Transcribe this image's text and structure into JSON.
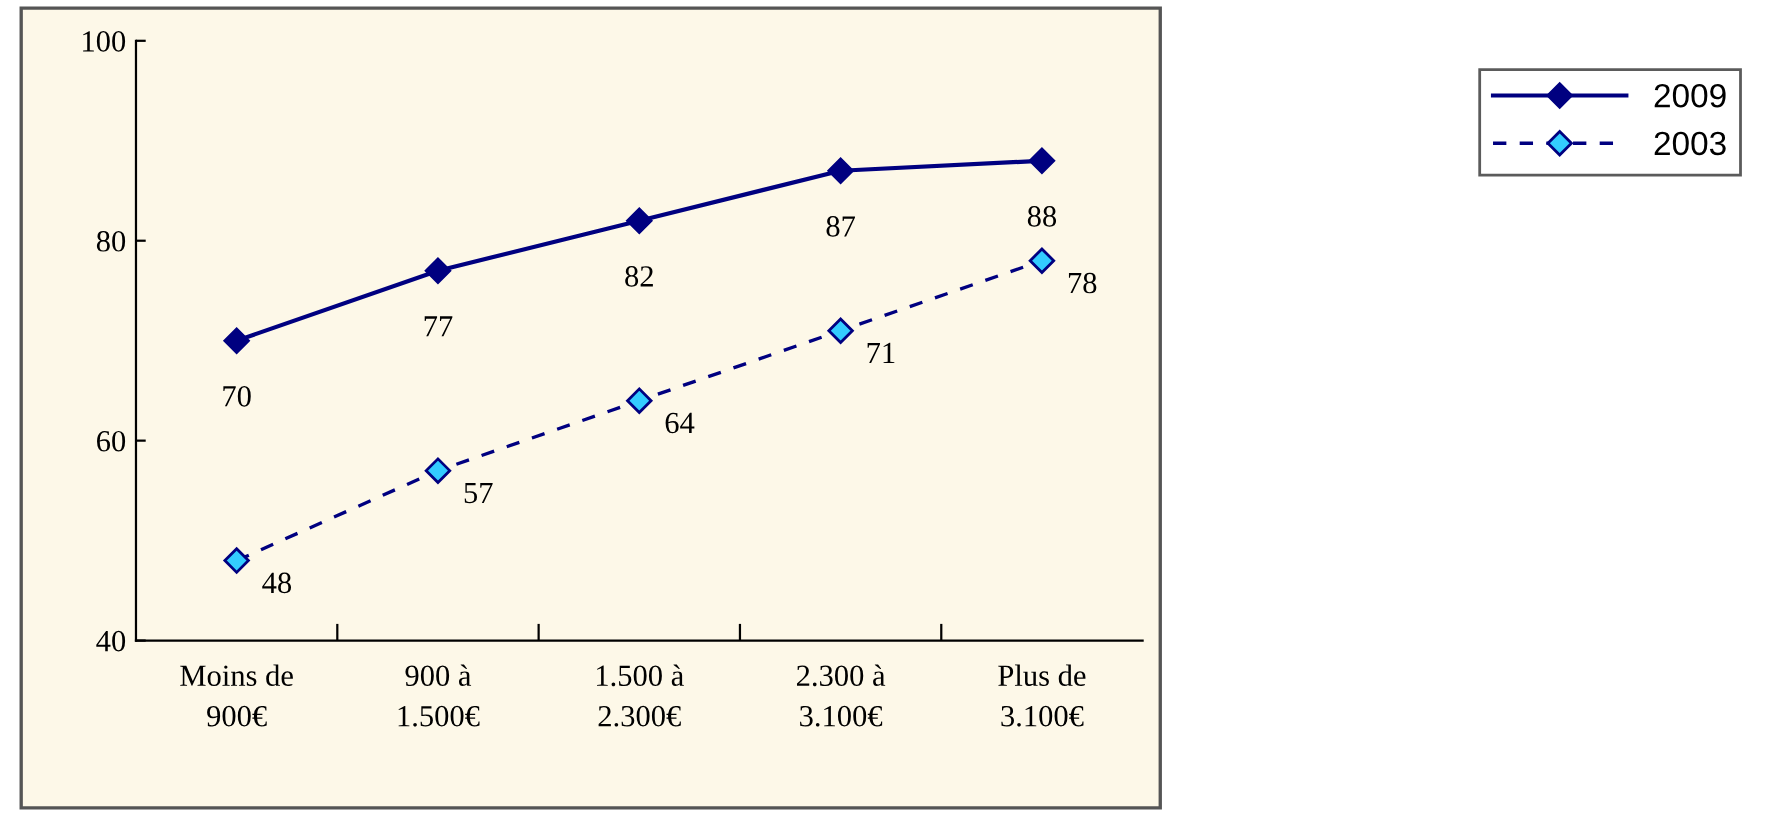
{
  "chart_data": {
    "type": "line",
    "categories": [
      "Moins de\n900€",
      "900 à\n1.500€",
      "1.500 à\n2.300€",
      "2.300 à\n3.100€",
      "Plus de\n3.100€"
    ],
    "series": [
      {
        "name": "2009",
        "color": "#000080",
        "values": [
          70,
          77,
          82,
          87,
          88
        ],
        "marker": "diamond",
        "line_style": "solid"
      },
      {
        "name": "2003",
        "color": "#33ccff",
        "values": [
          48,
          57,
          64,
          71,
          78
        ],
        "marker": "diamond",
        "line_style": "dashed"
      }
    ],
    "ylim": [
      40,
      100
    ],
    "yticks": [
      40,
      60,
      80,
      100
    ],
    "grid": false,
    "legend": "top right",
    "data_labels": true
  }
}
